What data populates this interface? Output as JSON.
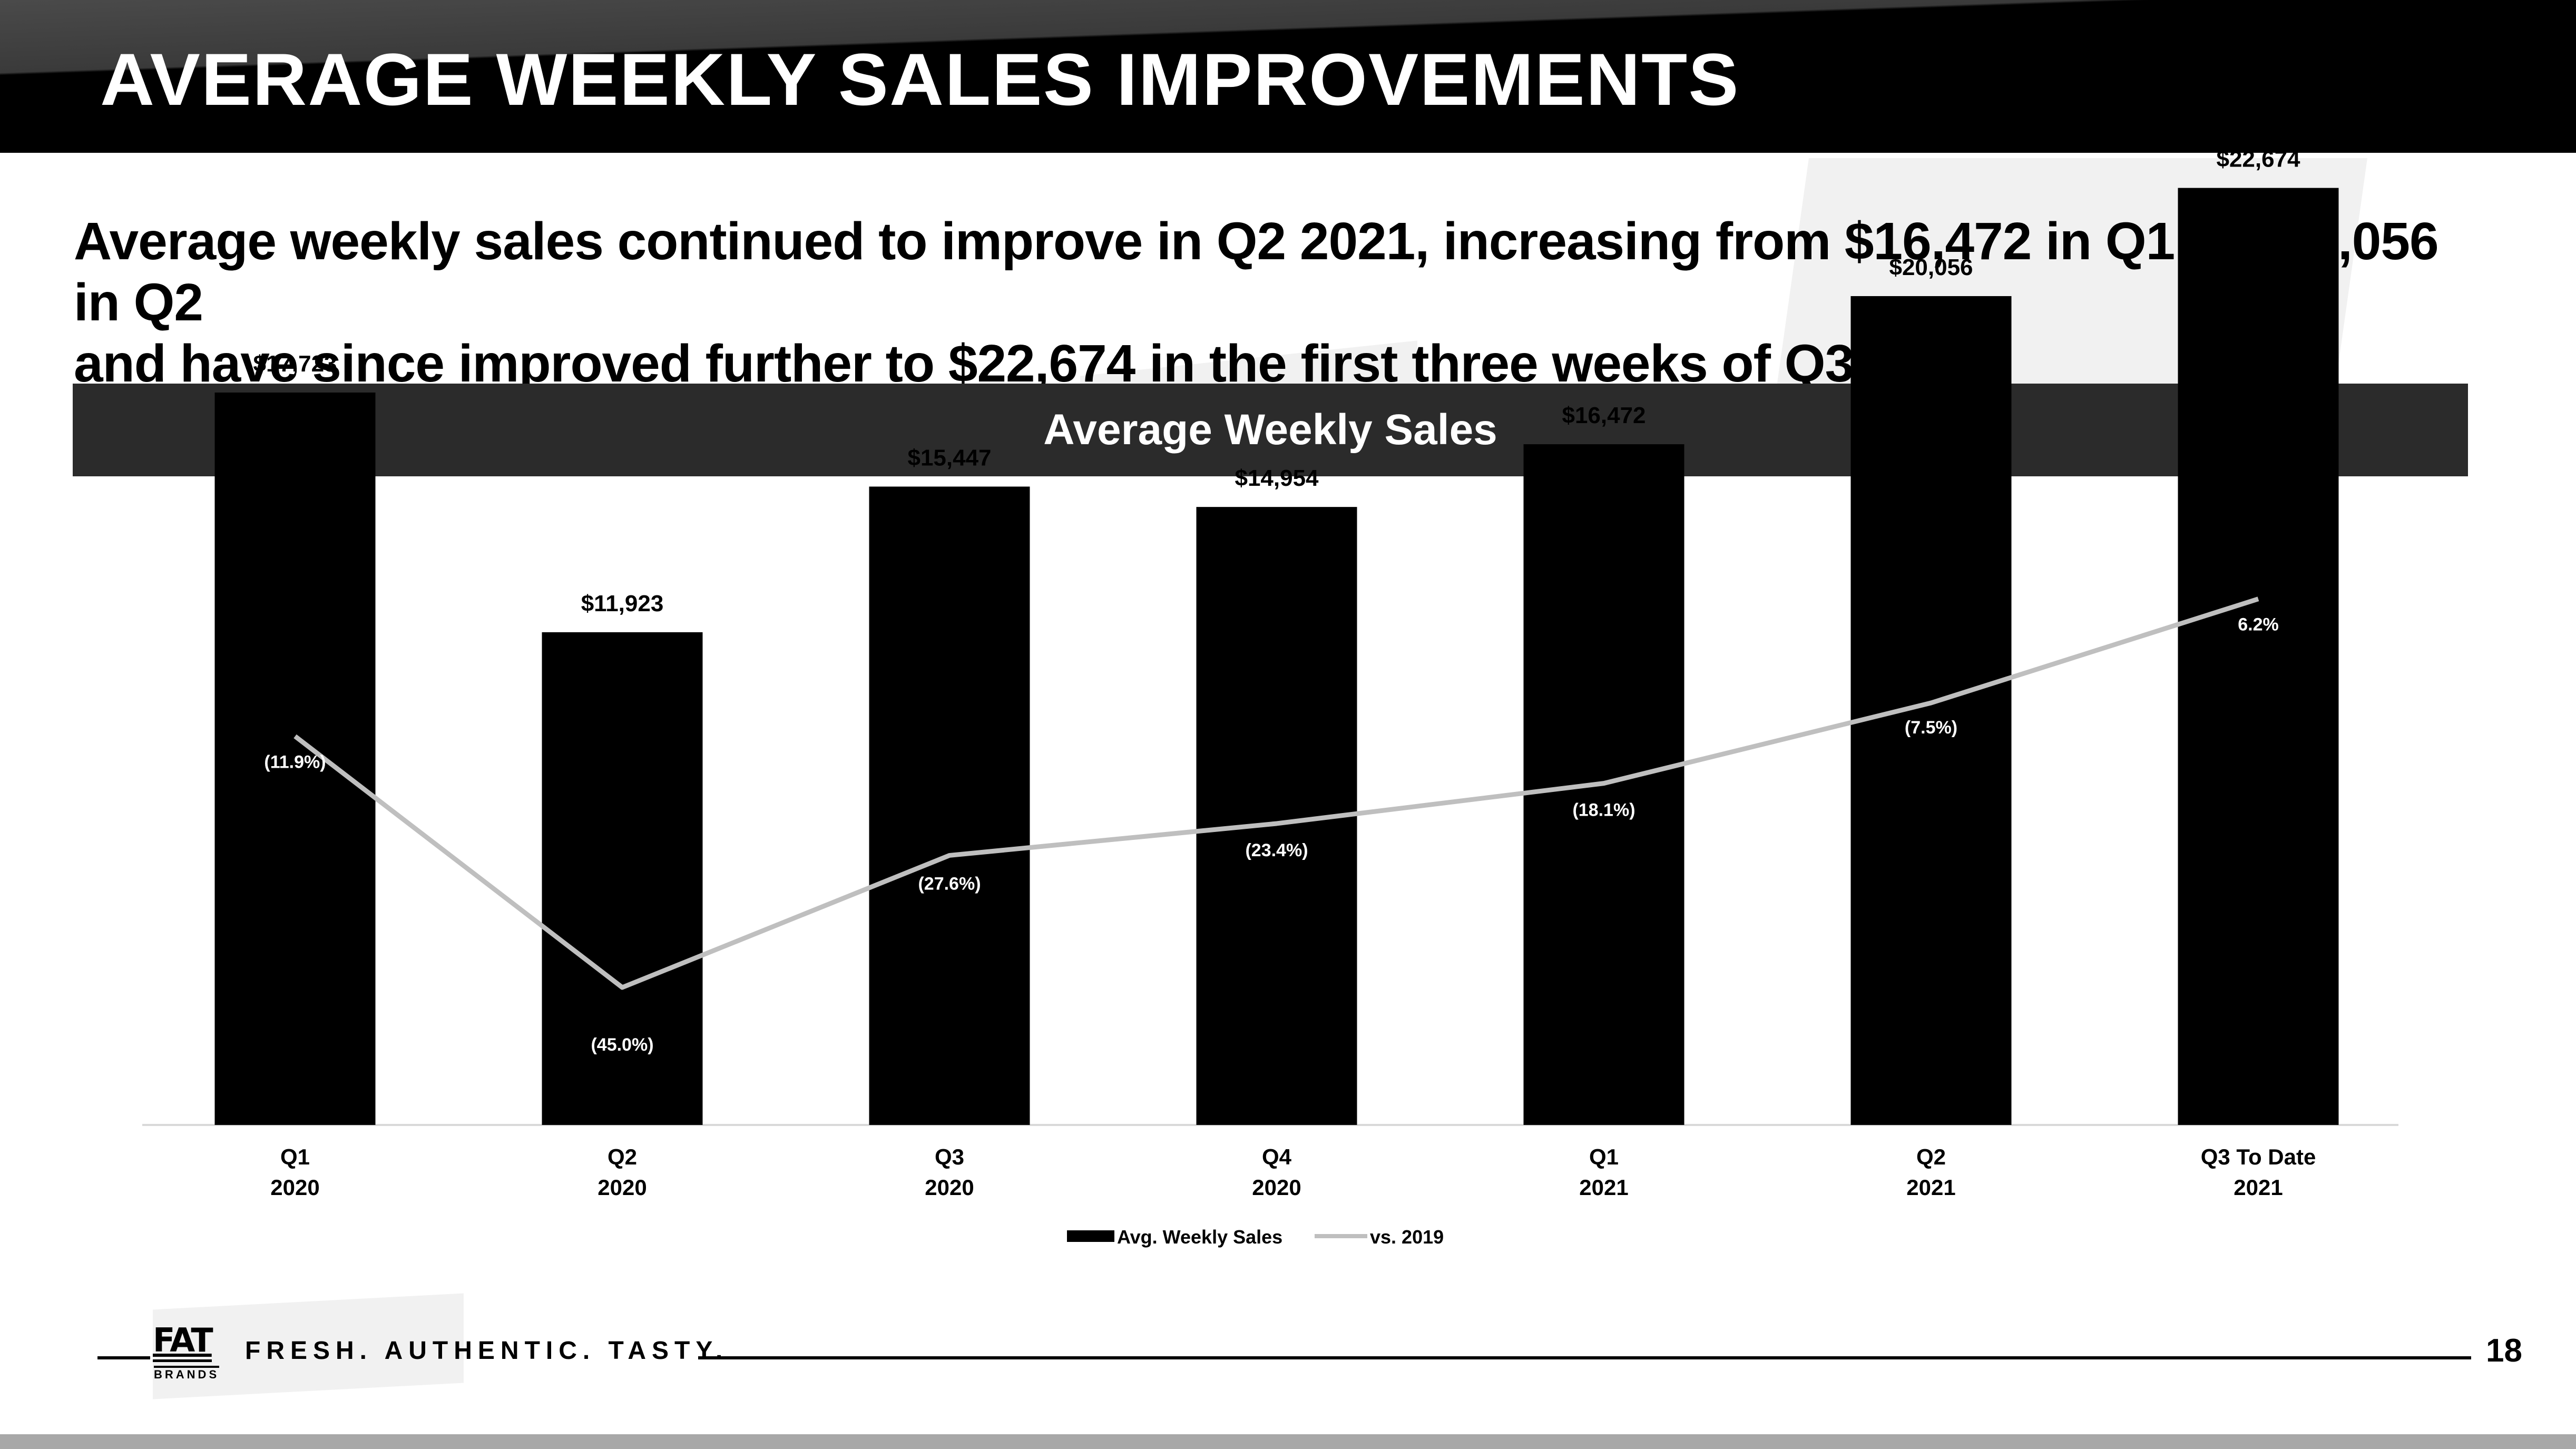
{
  "header": {
    "title": "AVERAGE WEEKLY SALES IMPROVEMENTS"
  },
  "subtitle": {
    "line1": "Average weekly sales continued to improve in Q2 2021, increasing from $16,472 in Q1 to $20,056 in Q2",
    "line2": "and have since improved further to $22,674 in the first three weeks of Q3."
  },
  "chart_banner": {
    "title": "Average Weekly Sales"
  },
  "chart_data": {
    "type": "bar",
    "title": "Average Weekly Sales",
    "categories": [
      [
        "Q1",
        "2020"
      ],
      [
        "Q2",
        "2020"
      ],
      [
        "Q3",
        "2020"
      ],
      [
        "Q4",
        "2020"
      ],
      [
        "Q1",
        "2021"
      ],
      [
        "Q2",
        "2021"
      ],
      [
        "Q3 To Date",
        "2021"
      ]
    ],
    "series": [
      {
        "name": "Avg. Weekly Sales",
        "type": "bar",
        "color": "#000000",
        "values": [
          17723,
          11923,
          15447,
          14954,
          16472,
          20056,
          22674
        ],
        "labels": [
          "$17,723",
          "$11,923",
          "$15,447",
          "$14,954",
          "$16,472",
          "$20,056",
          "$22,674"
        ]
      },
      {
        "name": "vs. 2019",
        "type": "line",
        "color": "#bfbfbf",
        "values": [
          -11.9,
          -45.0,
          -27.6,
          -23.4,
          -18.1,
          -7.5,
          6.2
        ],
        "labels": [
          "(11.9%)",
          "(45.0%)",
          "(27.6%)",
          "(23.4%)",
          "(18.1%)",
          "(7.5%)",
          "6.2%"
        ]
      }
    ],
    "ylim": [
      0,
      25000
    ],
    "grid": false,
    "legend_position": "bottom-center"
  },
  "footer": {
    "logo_text": "FAT",
    "logo_sub": "BRANDS",
    "tagline": "FRESH. AUTHENTIC. TASTY.",
    "page_number": "18"
  }
}
